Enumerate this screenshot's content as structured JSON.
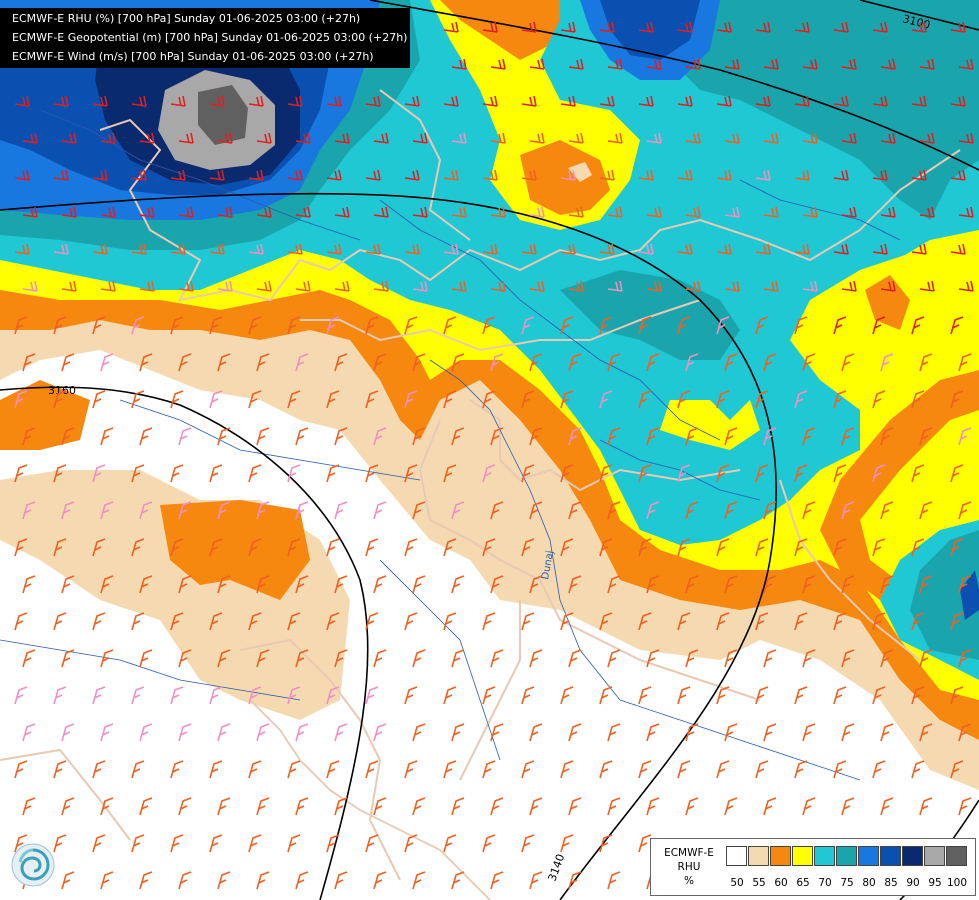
{
  "title_lines": [
    "ECMWF-E RHU (%) [700 hPa] Sunday 01-06-2025 03:00 (+27h)",
    "ECMWF-E Geopotential (m) [700 hPa] Sunday 01-06-2025 03:00 (+27h)",
    "ECMWF-E Wind (m/s) [700 hPa] Sunday 01-06-2025 03:00 (+27h)"
  ],
  "contour_labels": [
    "3100",
    "3160",
    "3140"
  ],
  "river_label": "Dunaj",
  "legend": {
    "model": "ECMWF-E",
    "variable": "RHU",
    "unit": "%",
    "ticks": [
      "50",
      "55",
      "60",
      "65",
      "70",
      "75",
      "80",
      "85",
      "90",
      "95",
      "100"
    ],
    "colors": [
      "#ffffff",
      "#f5d9b0",
      "#f6870f",
      "#ffff00",
      "#20c8d4",
      "#1aa5ad",
      "#1878e0",
      "#0a50b0",
      "#0a2a70",
      "#a8a8a8",
      "#606060"
    ]
  },
  "colors": {
    "rhu_50_55": "#f5d9b0",
    "rhu_55_60": "#f6870f",
    "rhu_60_65": "#ffff00",
    "rhu_65_70": "#20c8d4",
    "rhu_70_75": "#1aa5ad",
    "rhu_75_80": "#1878e0",
    "rhu_80_85": "#0a50b0",
    "rhu_85_90": "#0a2a70",
    "rhu_90_95": "#a8a8a8",
    "rhu_95_100": "#606060",
    "geopotential_line": "#000000",
    "borders": "#e8c9b4",
    "rivers": "#2a5ab0",
    "wind_barbs": [
      "#e02020",
      "#f06020",
      "#f090c0"
    ]
  },
  "logo_icon": "ecmwf-logo-icon"
}
